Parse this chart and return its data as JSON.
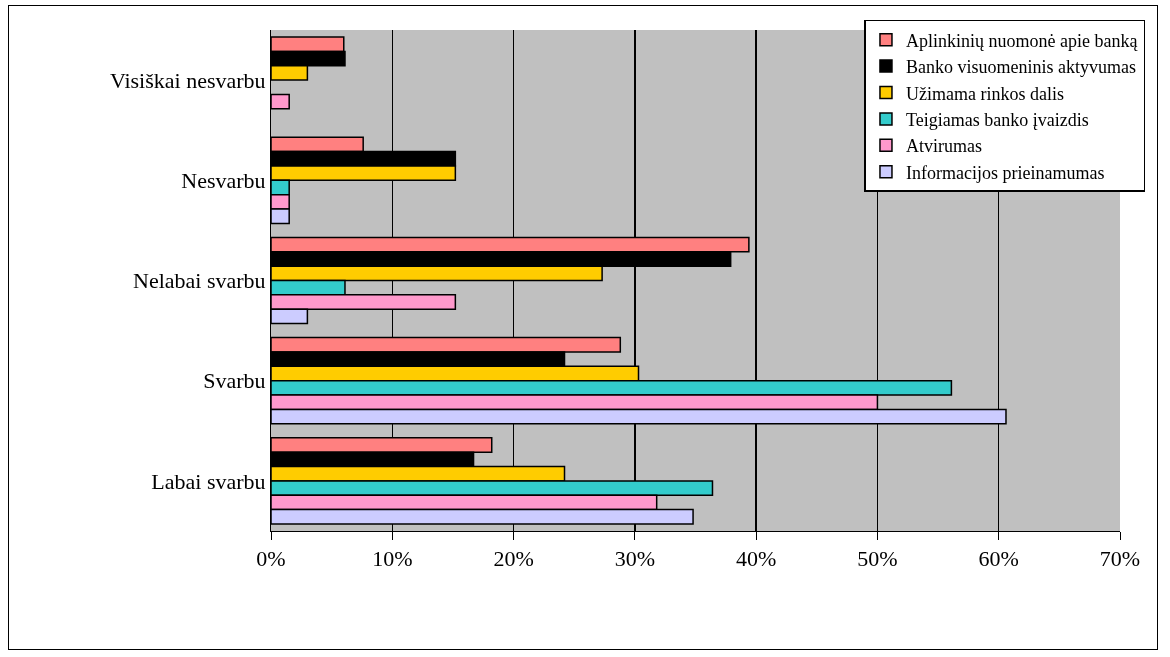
{
  "chart_data": {
    "type": "bar",
    "orientation": "horizontal",
    "categories": [
      "Visiškai nesvarbu",
      "Nesvarbu",
      "Nelabai svarbu",
      "Svarbu",
      "Labai svarbu"
    ],
    "series": [
      {
        "name": "Aplinkinių nuomonė apie banką",
        "color": "#ff8080",
        "values": [
          6.0,
          7.6,
          39.4,
          28.8,
          18.2
        ]
      },
      {
        "name": "Banko visuomeninis aktyvumas",
        "color": "#000000",
        "values": [
          6.1,
          15.2,
          37.9,
          24.2,
          16.7
        ]
      },
      {
        "name": "Užimama rinkos dalis",
        "color": "#ffcc00",
        "values": [
          3.0,
          15.2,
          27.3,
          30.3,
          24.2
        ]
      },
      {
        "name": "Teigiamas banko įvaizdis",
        "color": "#33cccc",
        "values": [
          null,
          1.5,
          6.1,
          56.1,
          36.4
        ]
      },
      {
        "name": "Atvirumas",
        "color": "#ff99cc",
        "values": [
          1.5,
          1.5,
          15.2,
          50.0,
          31.8
        ]
      },
      {
        "name": "Informacijos prieinamumas",
        "color": "#ccccff",
        "values": [
          null,
          1.5,
          3.0,
          60.6,
          34.8
        ]
      }
    ],
    "xlim": [
      0,
      70
    ],
    "xticks": [
      {
        "value": 0,
        "label": "0%"
      },
      {
        "value": 10,
        "label": "10%"
      },
      {
        "value": 20,
        "label": "20%"
      },
      {
        "value": 30,
        "label": "30%"
      },
      {
        "value": 40,
        "label": "40%"
      },
      {
        "value": 50,
        "label": "50%"
      },
      {
        "value": 60,
        "label": "60%"
      },
      {
        "value": 70,
        "label": "70%"
      }
    ],
    "grid": "x",
    "legend": "top right"
  }
}
